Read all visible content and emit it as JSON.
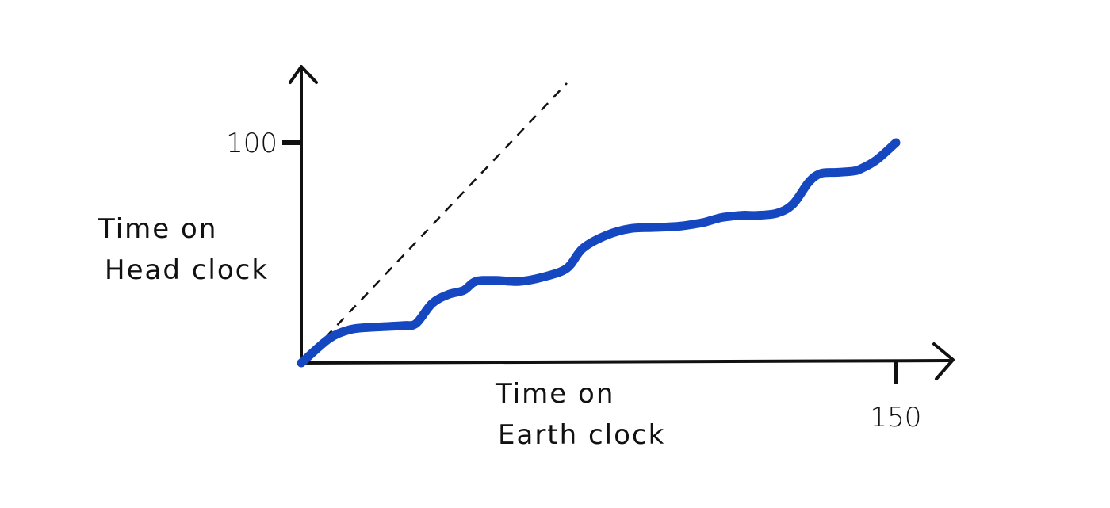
{
  "chart_data": {
    "type": "line",
    "title": "",
    "xlabel": "Time on Earth clock",
    "xlabel_lines": [
      "Time on",
      "Earth clock"
    ],
    "ylabel": "Time on Head clock",
    "ylabel_lines": [
      "Time on",
      "Head clock"
    ],
    "xlim": [
      0,
      155
    ],
    "ylim": [
      0,
      100
    ],
    "x_ticks": [
      {
        "value": 150,
        "label": "150"
      }
    ],
    "y_ticks": [
      {
        "value": 100,
        "label": "100"
      }
    ],
    "grid": false,
    "legend": "none",
    "reference_line": {
      "style": "dashed",
      "color": "#111111",
      "x": [
        0,
        67
      ],
      "y": [
        0,
        127
      ]
    },
    "series": [
      {
        "color": "#1547c0",
        "x": [
          0,
          7,
          12,
          16,
          21,
          26,
          29,
          33,
          37,
          41,
          44,
          49,
          55,
          61,
          67,
          71,
          77,
          83,
          89,
          95,
          99,
          102,
          106,
          111,
          113,
          115,
          120,
          124,
          128,
          131,
          135,
          139,
          141,
          145,
          150
        ],
        "y": [
          0,
          11,
          15,
          16,
          16.5,
          17,
          18,
          27,
          31,
          33,
          37,
          37.5,
          37,
          39,
          43,
          52,
          58,
          61,
          61.5,
          62,
          63,
          64,
          66,
          67,
          67,
          67,
          68,
          72,
          82,
          86,
          86.5,
          87,
          88,
          92,
          100
        ]
      }
    ]
  }
}
